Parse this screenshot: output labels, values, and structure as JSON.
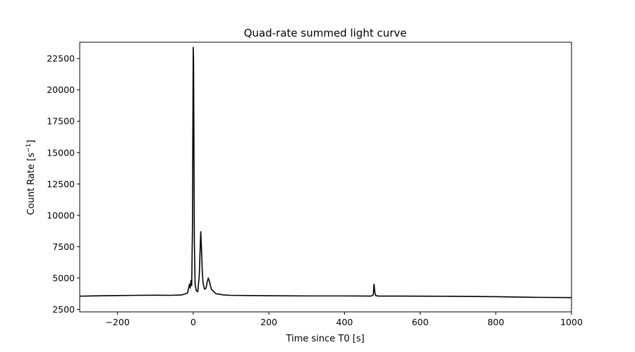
{
  "chart_data": {
    "type": "line",
    "title": "Quad-rate summed light curve",
    "xlabel": "Time since T0 [s]",
    "ylabel": "Count Rate [s",
    "ylabel_superscript": "−1",
    "ylabel_suffix": "]",
    "xlim": [
      -300,
      1000
    ],
    "ylim": [
      2300,
      23800
    ],
    "x_ticks": [
      -200,
      0,
      200,
      400,
      600,
      800,
      1000
    ],
    "x_tick_labels": [
      "−200",
      "0",
      "200",
      "400",
      "600",
      "800",
      "1000"
    ],
    "y_ticks": [
      2500,
      5000,
      7500,
      10000,
      12500,
      15000,
      17500,
      20000,
      22500
    ],
    "y_tick_labels": [
      "2500",
      "5000",
      "7500",
      "10000",
      "12500",
      "15000",
      "17500",
      "20000",
      "22500"
    ],
    "grid": false,
    "legend": "none",
    "series": [
      {
        "color": "#000000",
        "x": [
          -300,
          -250,
          -200,
          -150,
          -100,
          -60,
          -30,
          -15,
          -10,
          -8,
          -6,
          -4,
          -2,
          0,
          1,
          2,
          3,
          5,
          8,
          12,
          16,
          18,
          20,
          22,
          24,
          26,
          30,
          34,
          37,
          40,
          43,
          48,
          60,
          80,
          100,
          150,
          200,
          300,
          400,
          470,
          476,
          478,
          480,
          482,
          490,
          550,
          600,
          700,
          800,
          900,
          1000
        ],
        "y": [
          3550,
          3580,
          3600,
          3620,
          3630,
          3620,
          3650,
          3800,
          4500,
          4200,
          4800,
          4400,
          9000,
          23400,
          22000,
          15000,
          8000,
          4500,
          4000,
          3900,
          5200,
          7000,
          8700,
          7200,
          5500,
          4600,
          4100,
          4200,
          4700,
          5000,
          4700,
          4100,
          3750,
          3650,
          3620,
          3600,
          3590,
          3570,
          3570,
          3560,
          3650,
          4500,
          3900,
          3600,
          3560,
          3560,
          3550,
          3540,
          3510,
          3460,
          3440
        ]
      }
    ]
  }
}
